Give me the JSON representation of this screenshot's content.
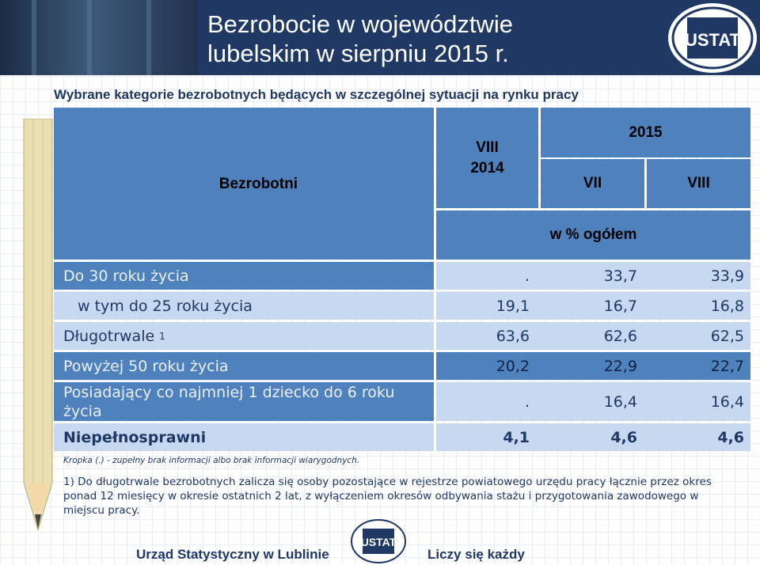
{
  "header": {
    "title": "Bezrobocie w województwie\nlubelskim w sierpniu 2015 r.",
    "logo_text": "USTAT"
  },
  "subtitle": "Wybrane kategorie bezrobotnych będących w szczególnej sytuacji na rynku pracy",
  "table": {
    "col_label": "Bezrobotni",
    "col_prev": "VIII\n2014",
    "year_group": "2015",
    "col_vii": "VII",
    "col_viii": "VIII",
    "unit": "w % ogółem",
    "rows": [
      {
        "label": "Do 30 roku życia",
        "v2014": ".",
        "vii": "33,7",
        "viii": "33,9"
      },
      {
        "label": "w tym do 25 roku życia",
        "v2014": "19,1",
        "vii": "16,7",
        "viii": "16,8"
      },
      {
        "label": "Długotrwale",
        "sup": "1",
        "v2014": "63,6",
        "vii": "62,6",
        "viii": "62,5"
      },
      {
        "label": "Powyżej 50 roku życia",
        "v2014": "20,2",
        "vii": "22,9",
        "viii": "22,7"
      },
      {
        "label": "Posiadający co najmniej 1 dziecko do 6 roku życia",
        "v2014": ".",
        "vii": "16,4",
        "viii": "16,4"
      },
      {
        "label": "Niepełnosprawni",
        "v2014": "4,1",
        "vii": "4,6",
        "viii": "4,6"
      }
    ]
  },
  "kropka_note": "Kropka (.) - zupełny brak informacji albo brak informacji wiarygodnych.",
  "footnote": "1) Do długotrwale bezrobotnych zalicza się osoby pozostające w rejestrze powiatowego urzędu pracy łącznie przez okres ponad 12 miesięcy w okresie ostatnich 2 lat, z wyłączeniem okresów odbywania stażu i przygotowania zawodowego w miejscu pracy.",
  "footer": {
    "left": "Urząd Statystyczny w Lublinie",
    "right": "Liczy się każdy"
  },
  "colors": {
    "header_bg": "#1f3864",
    "table_header": "#4f81bd",
    "cell_light": "#c6d9f1",
    "text_dark": "#1f3864"
  }
}
